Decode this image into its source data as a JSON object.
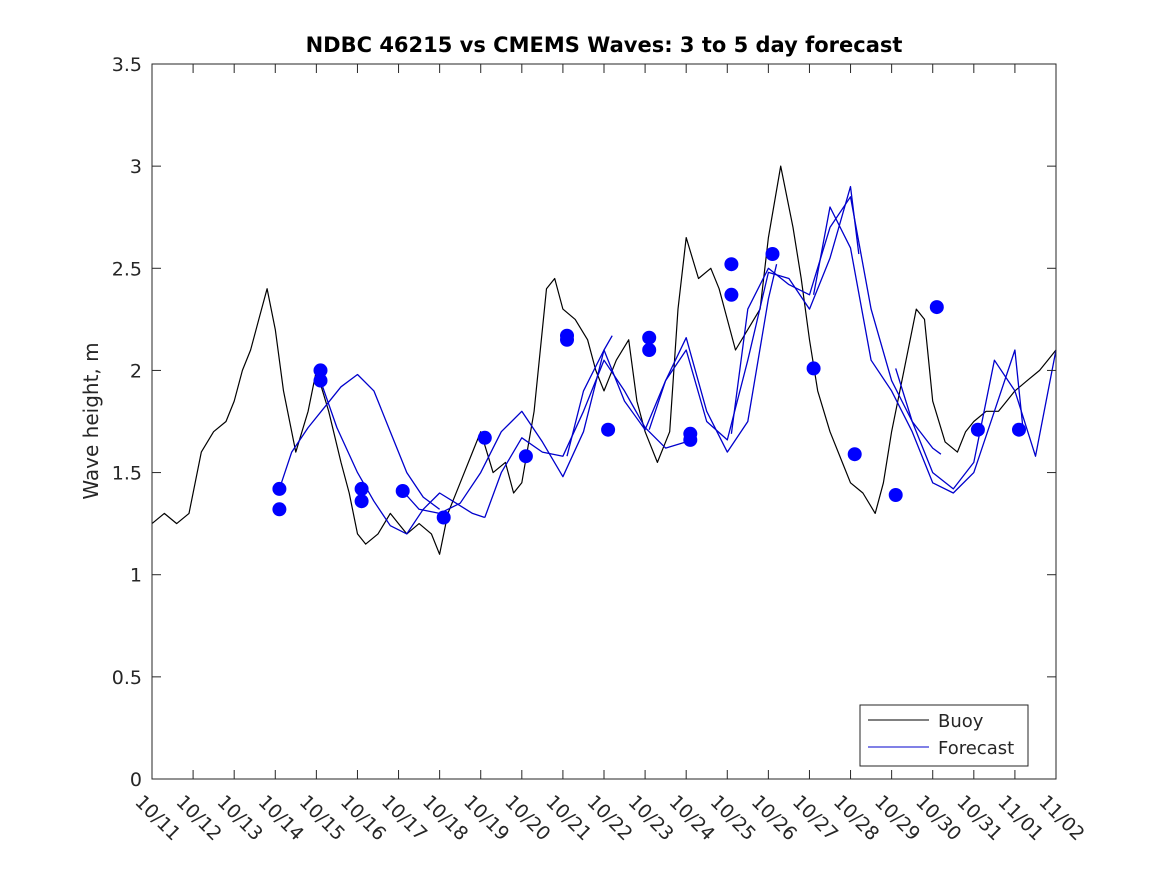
{
  "chart_data": {
    "type": "line",
    "title": "NDBC 46215 vs CMEMS Waves: 3 to 5 day forecast",
    "xlabel": "",
    "ylabel": "Wave height, m",
    "xlim": [
      0,
      22
    ],
    "ylim": [
      0,
      3.5
    ],
    "x_ticks": [
      0,
      1,
      2,
      3,
      4,
      5,
      6,
      7,
      8,
      9,
      10,
      11,
      12,
      13,
      14,
      15,
      16,
      17,
      18,
      19,
      20,
      21,
      22
    ],
    "x_tick_labels": [
      "10/11",
      "10/12",
      "10/13",
      "10/14",
      "10/15",
      "10/16",
      "10/17",
      "10/18",
      "10/19",
      "10/20",
      "10/21",
      "10/22",
      "10/23",
      "10/24",
      "10/25",
      "10/26",
      "10/27",
      "10/28",
      "10/29",
      "10/30",
      "10/31",
      "11/01",
      "11/02"
    ],
    "y_ticks": [
      0,
      0.5,
      1,
      1.5,
      2,
      2.5,
      3,
      3.5
    ],
    "y_tick_labels": [
      "0",
      "0.5",
      "1",
      "1.5",
      "2",
      "2.5",
      "3",
      "3.5"
    ],
    "legend_position": "bottom-right",
    "colors": {
      "buoy": "#000000",
      "forecast": "#0000cc",
      "markers": "#0000ff",
      "axis": "#262626"
    },
    "series": [
      {
        "name": "Buoy",
        "color": "#000000",
        "x": [
          0,
          0.3,
          0.6,
          0.9,
          1.0,
          1.2,
          1.5,
          1.8,
          2.0,
          2.2,
          2.4,
          2.6,
          2.8,
          3.0,
          3.2,
          3.5,
          3.8,
          4.0,
          4.3,
          4.6,
          4.8,
          5.0,
          5.2,
          5.5,
          5.8,
          6.0,
          6.2,
          6.5,
          6.8,
          7.0,
          7.2,
          7.5,
          7.8,
          8.0,
          8.3,
          8.6,
          8.8,
          9.0,
          9.3,
          9.6,
          9.8,
          10.0,
          10.3,
          10.6,
          10.8,
          11.0,
          11.3,
          11.6,
          11.8,
          12.0,
          12.3,
          12.6,
          12.8,
          13.0,
          13.3,
          13.6,
          13.8,
          14.0,
          14.2,
          14.5,
          14.8,
          15.0,
          15.3,
          15.6,
          15.8,
          16.0,
          16.2,
          16.5,
          16.8,
          17.0,
          17.3,
          17.6,
          17.8,
          18.0,
          18.3,
          18.6,
          18.8,
          19.0,
          19.3,
          19.6,
          19.8,
          20.0,
          20.3,
          20.6,
          20.8,
          21.0,
          21.3,
          21.6,
          21.8,
          22.0
        ],
        "values": [
          1.25,
          1.3,
          1.25,
          1.3,
          1.4,
          1.6,
          1.7,
          1.75,
          1.85,
          2.0,
          2.1,
          2.25,
          2.4,
          2.2,
          1.9,
          1.6,
          1.8,
          2.0,
          1.8,
          1.55,
          1.4,
          1.2,
          1.15,
          1.2,
          1.3,
          1.25,
          1.2,
          1.25,
          1.2,
          1.1,
          1.3,
          1.45,
          1.6,
          1.7,
          1.5,
          1.55,
          1.4,
          1.45,
          1.8,
          2.4,
          2.45,
          2.3,
          2.25,
          2.15,
          2.0,
          1.9,
          2.05,
          2.15,
          1.85,
          1.7,
          1.55,
          1.7,
          2.3,
          2.65,
          2.45,
          2.5,
          2.4,
          2.25,
          2.1,
          2.2,
          2.3,
          2.65,
          3.0,
          2.7,
          2.45,
          2.15,
          1.9,
          1.7,
          1.55,
          1.45,
          1.4,
          1.3,
          1.45,
          1.7,
          2.0,
          2.3,
          2.25,
          1.85,
          1.65,
          1.6,
          1.7,
          1.75,
          1.8,
          1.8,
          1.85,
          1.9,
          1.95,
          2.0,
          2.05,
          2.1
        ]
      },
      {
        "name": "Forecast",
        "color": "#0000cc",
        "runs": [
          {
            "x": [
              3.1,
              3.4,
              3.8,
              4.2,
              4.6,
              5.0,
              5.4,
              5.8,
              6.2,
              6.6,
              7.0
            ],
            "values": [
              1.42,
              1.6,
              1.72,
              1.82,
              1.92,
              1.98,
              1.9,
              1.7,
              1.5,
              1.38,
              1.32
            ]
          },
          {
            "x": [
              4.1,
              4.5,
              5.0,
              5.4,
              5.8,
              6.2,
              6.6,
              7.0,
              7.4,
              7.8,
              8.1
            ],
            "values": [
              1.95,
              1.72,
              1.5,
              1.36,
              1.24,
              1.2,
              1.32,
              1.4,
              1.35,
              1.3,
              1.28
            ]
          },
          {
            "x": [
              6.1,
              6.5,
              7.0,
              7.5,
              8.0,
              8.5,
              9.0,
              9.5,
              10.0,
              10.5,
              11.0,
              11.2
            ],
            "values": [
              1.41,
              1.32,
              1.3,
              1.35,
              1.5,
              1.7,
              1.8,
              1.65,
              1.48,
              1.7,
              2.1,
              2.17
            ]
          },
          {
            "x": [
              8.1,
              8.5,
              9.0,
              9.5,
              10.0,
              10.5,
              11.0,
              11.5,
              12.0,
              12.5,
              13.0,
              13.2
            ],
            "values": [
              1.28,
              1.5,
              1.67,
              1.6,
              1.58,
              1.8,
              2.05,
              1.9,
              1.72,
              1.62,
              1.65,
              1.7
            ]
          },
          {
            "x": [
              10.1,
              10.5,
              11.0,
              11.5,
              12.0,
              12.5,
              13.0,
              13.5,
              14.0,
              14.5,
              15.0,
              15.2
            ],
            "values": [
              1.58,
              1.9,
              2.1,
              1.85,
              1.71,
              1.95,
              2.16,
              1.8,
              1.6,
              1.75,
              2.35,
              2.52
            ]
          },
          {
            "x": [
              12.1,
              12.5,
              13.0,
              13.5,
              14.0,
              14.5,
              15.0,
              15.5,
              16.0,
              16.5,
              17.0,
              17.2
            ],
            "values": [
              1.71,
              1.95,
              2.1,
              1.75,
              1.66,
              2.05,
              2.48,
              2.45,
              2.3,
              2.55,
              2.9,
              2.57
            ]
          },
          {
            "x": [
              14.1,
              14.5,
              15.0,
              15.5,
              16.0,
              16.5,
              17.0,
              17.5,
              18.0,
              18.5,
              19.0,
              19.2
            ],
            "values": [
              1.69,
              2.3,
              2.5,
              2.42,
              2.37,
              2.7,
              2.85,
              2.3,
              1.95,
              1.75,
              1.62,
              1.59
            ]
          },
          {
            "x": [
              16.1,
              16.5,
              17.0,
              17.5,
              18.0,
              18.5,
              19.0,
              19.5,
              20.0,
              20.5,
              21.0,
              21.2
            ],
            "values": [
              2.37,
              2.8,
              2.6,
              2.05,
              1.9,
              1.7,
              1.45,
              1.4,
              1.5,
              1.8,
              2.1,
              1.71
            ]
          },
          {
            "x": [
              18.1,
              18.5,
              19.0,
              19.5,
              20.0,
              20.5,
              21.0,
              21.5,
              22.0
            ],
            "values": [
              2.01,
              1.75,
              1.5,
              1.42,
              1.55,
              2.05,
              1.9,
              1.58,
              2.1
            ]
          }
        ]
      }
    ],
    "markers": {
      "name": "Forecast points",
      "color": "#0000ff",
      "x": [
        3.1,
        3.1,
        4.1,
        4.1,
        5.1,
        5.1,
        6.1,
        7.1,
        8.1,
        9.1,
        10.1,
        10.1,
        11.1,
        12.1,
        12.1,
        13.1,
        13.1,
        14.1,
        14.1,
        15.1,
        16.1,
        17.1,
        18.1,
        19.1,
        20.1,
        21.1
      ],
      "values": [
        1.42,
        1.32,
        2.0,
        1.95,
        1.42,
        1.36,
        1.41,
        1.28,
        1.67,
        1.58,
        2.17,
        2.15,
        1.71,
        2.16,
        2.1,
        1.69,
        1.66,
        2.52,
        2.37,
        2.57,
        2.01,
        1.59,
        1.39,
        2.31,
        1.71,
        1.71
      ]
    }
  }
}
